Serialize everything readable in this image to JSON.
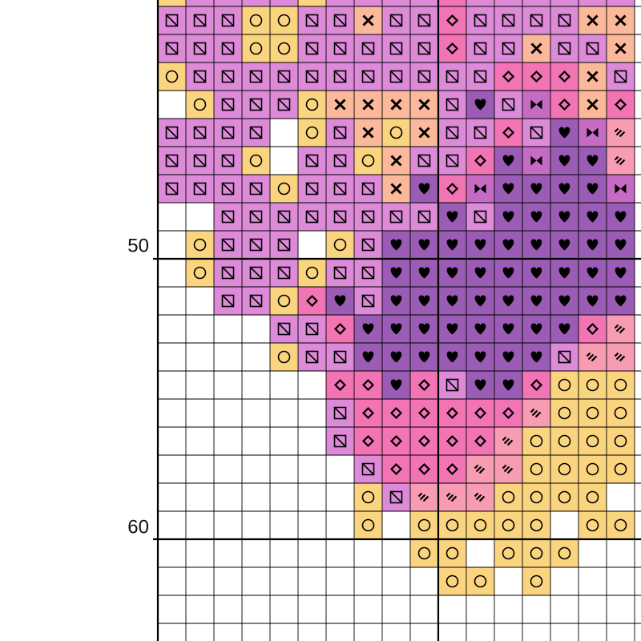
{
  "row_labels": [
    "50",
    "60"
  ]
}
